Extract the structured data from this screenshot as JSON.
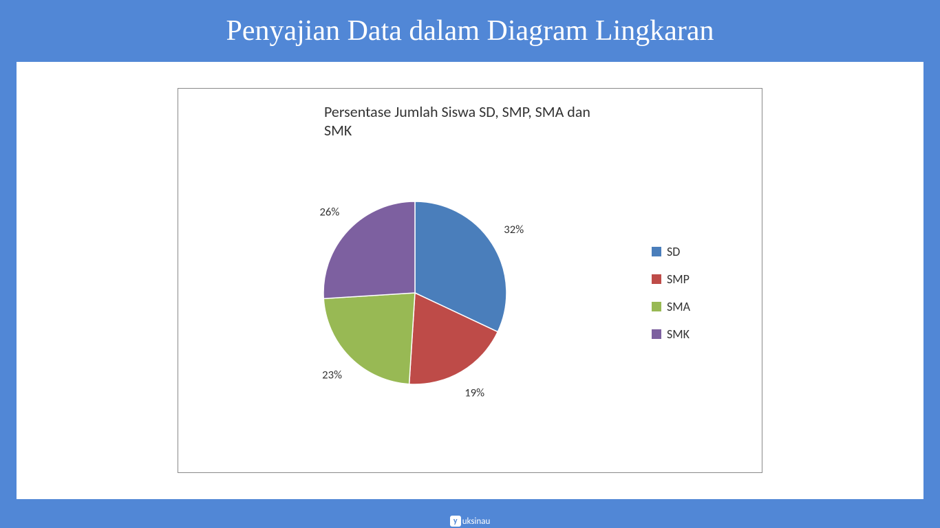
{
  "header": {
    "title": "Penyajian Data dalam Diagram Lingkaran",
    "background_color": "#5187d6",
    "title_color": "#ffffff",
    "title_fontsize": 42
  },
  "chart": {
    "type": "pie",
    "title": "Persentase Jumlah Siswa SD, SMP, SMA dan SMK",
    "title_fontsize": 22,
    "title_color": "#333333",
    "background_color": "#ffffff",
    "border_color": "#888888",
    "start_angle_deg": -90,
    "radius": 175,
    "slices": [
      {
        "label": "SD",
        "value": 32,
        "display": "32%",
        "color": "#4a7ebb"
      },
      {
        "label": "SMP",
        "value": 19,
        "display": "19%",
        "color": "#be4b48"
      },
      {
        "label": "SMA",
        "value": 23,
        "display": "23%",
        "color": "#98b954"
      },
      {
        "label": "SMK",
        "value": 26,
        "display": "26%",
        "color": "#7d60a0"
      }
    ],
    "label_fontsize": 22,
    "label_color": "#333333",
    "label_radius_factor": 1.28,
    "legend": {
      "position": "right",
      "swatch_size": 14,
      "fontsize": 18,
      "text_color": "#333333",
      "items": [
        "SD",
        "SMP",
        "SMA",
        "SMK"
      ]
    }
  },
  "footer": {
    "logo_icon_text": "y",
    "logo_text": "uksinau",
    "background_color": "#5187d6",
    "text_color": "#ffffff"
  }
}
